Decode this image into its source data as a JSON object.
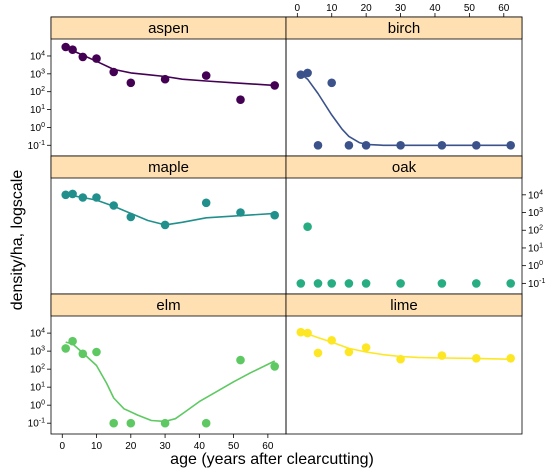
{
  "chart_data": {
    "type": "scatter",
    "layout_desc": "lattice 2 columns x 3 rows, shared axes, orange-tan strip headers",
    "xlabel": "age (years after clearcutting)",
    "ylabel": "density/ha, logscale",
    "xlim": [
      -3,
      65
    ],
    "ylim_log10": [
      -1.6,
      4.95
    ],
    "y_scale": "log10",
    "x_ticks": [
      0,
      10,
      20,
      30,
      40,
      50,
      60
    ],
    "y_tick_labels": [
      "10^-1",
      "10^0",
      "10^1",
      "10^2",
      "10^3",
      "10^4"
    ],
    "strip_color": "#ffe0b2",
    "panels": [
      {
        "name": "aspen",
        "color": "#440154",
        "x": [
          1,
          3,
          6,
          10,
          15,
          20,
          30,
          42,
          52,
          62
        ],
        "log10_y": [
          4.5,
          4.35,
          3.95,
          3.85,
          3.1,
          2.5,
          2.7,
          2.9,
          1.55,
          2.35
        ],
        "smooth_x": [
          1,
          3,
          6,
          10,
          15,
          20,
          25,
          30,
          35,
          42,
          50,
          62
        ],
        "smooth_log10_y": [
          4.55,
          4.3,
          4.05,
          3.7,
          3.25,
          3.05,
          2.95,
          2.85,
          2.7,
          2.6,
          2.5,
          2.35
        ]
      },
      {
        "name": "birch",
        "color": "#3b528b",
        "x": [
          1,
          3,
          6,
          10,
          15,
          20,
          30,
          42,
          52,
          62
        ],
        "log10_y": [
          2.95,
          3.05,
          -1,
          2.5,
          -1,
          -1,
          -1,
          -1,
          -1,
          -1
        ],
        "smooth_x": [
          1,
          3,
          6,
          10,
          13,
          15,
          18,
          20,
          25,
          30,
          42,
          52,
          62
        ],
        "smooth_log10_y": [
          3.0,
          2.7,
          1.9,
          0.7,
          -0.1,
          -0.5,
          -0.85,
          -0.95,
          -1,
          -1,
          -1,
          -1,
          -1
        ]
      },
      {
        "name": "maple",
        "color": "#21908d",
        "x": [
          1,
          3,
          6,
          10,
          15,
          20,
          30,
          42,
          52,
          62
        ],
        "log10_y": [
          4.0,
          4.05,
          3.85,
          3.85,
          3.4,
          2.75,
          2.3,
          3.55,
          3.0,
          2.85
        ],
        "smooth_x": [
          1,
          3,
          6,
          10,
          15,
          20,
          25,
          30,
          35,
          42,
          50,
          62
        ],
        "smooth_log10_y": [
          4.0,
          3.95,
          3.85,
          3.7,
          3.35,
          2.95,
          2.55,
          2.3,
          2.45,
          2.7,
          2.8,
          2.95
        ]
      },
      {
        "name": "oak",
        "color": "#27ad81",
        "x": [
          1,
          3,
          6,
          10,
          15,
          20,
          30,
          42,
          52,
          62
        ],
        "log10_y": [
          -1,
          2.2,
          -1,
          -1,
          -1,
          -1,
          -1,
          -1,
          -1,
          -1
        ],
        "smooth_x": [],
        "smooth_log10_y": []
      },
      {
        "name": "elm",
        "color": "#5ec962",
        "x": [
          1,
          3,
          6,
          10,
          15,
          20,
          30,
          42,
          52,
          62
        ],
        "log10_y": [
          3.15,
          3.55,
          2.85,
          2.95,
          -1,
          -1,
          -1,
          -1,
          2.5,
          2.15
        ],
        "smooth_x": [
          1,
          3,
          6,
          10,
          13,
          15,
          18,
          22,
          26,
          30,
          33,
          36,
          40,
          45,
          50,
          55,
          62
        ],
        "smooth_log10_y": [
          3.5,
          3.4,
          2.9,
          2.2,
          1.2,
          0.4,
          -0.2,
          -0.55,
          -0.85,
          -0.9,
          -0.75,
          -0.35,
          0.2,
          0.75,
          1.3,
          1.8,
          2.45
        ]
      },
      {
        "name": "lime",
        "color": "#fde725",
        "x": [
          1,
          3,
          6,
          10,
          15,
          20,
          30,
          42,
          52,
          62
        ],
        "log10_y": [
          4.05,
          4.0,
          2.9,
          3.6,
          2.95,
          3.2,
          2.55,
          2.75,
          2.6,
          2.6
        ],
        "smooth_x": [
          1,
          3,
          6,
          10,
          15,
          20,
          25,
          30,
          35,
          42,
          50,
          62
        ],
        "smooth_log10_y": [
          4.05,
          3.95,
          3.75,
          3.5,
          3.15,
          2.95,
          2.8,
          2.7,
          2.65,
          2.62,
          2.6,
          2.55
        ]
      }
    ]
  }
}
